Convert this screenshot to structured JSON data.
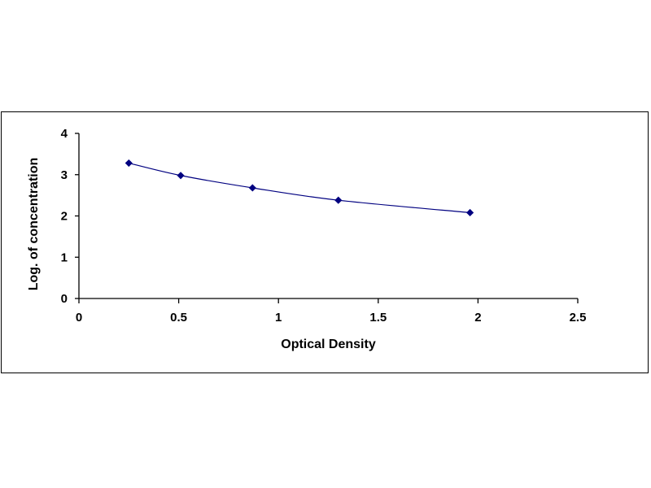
{
  "chart_data": {
    "type": "scatter",
    "title": "",
    "xlabel": "Optical Density",
    "ylabel": "Log. of concentration",
    "xlim": [
      0,
      2.5
    ],
    "ylim": [
      0,
      4
    ],
    "x_ticks": [
      "0",
      "0.5",
      "1",
      "1.5",
      "2",
      "2.5"
    ],
    "y_ticks": [
      "0",
      "1",
      "2",
      "3",
      "4"
    ],
    "grid": false,
    "legend": "none",
    "series": [
      {
        "x": [
          0.25,
          0.51,
          0.87,
          1.3,
          1.96
        ],
        "y": [
          3.28,
          2.98,
          2.68,
          2.38,
          2.08
        ],
        "marker": "diamond",
        "trendline": "smooth",
        "color": "#000080"
      }
    ]
  }
}
